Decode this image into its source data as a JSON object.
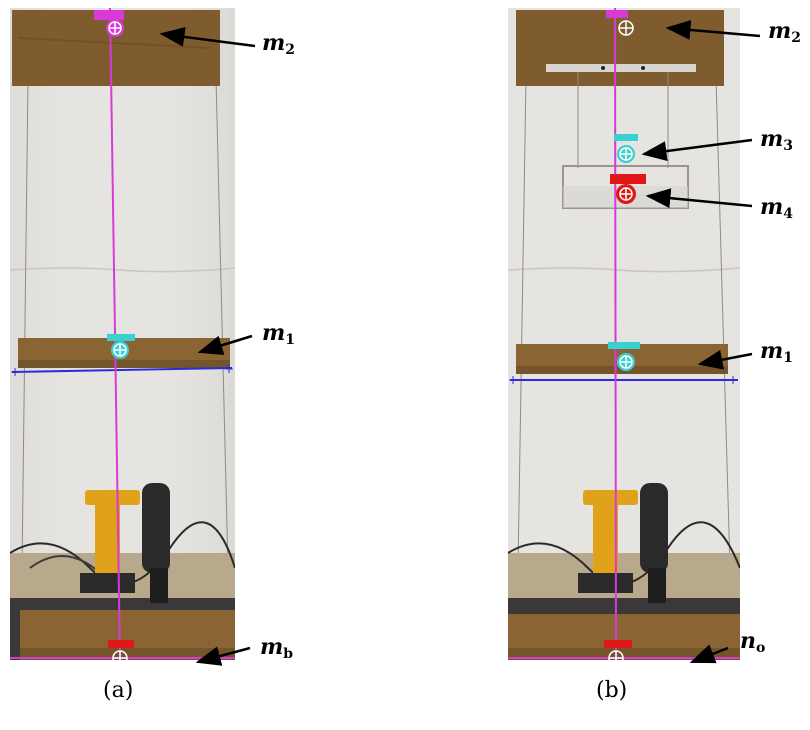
{
  "panel_a": {
    "caption": "(a)",
    "labels": {
      "m2": {
        "base": "m",
        "sub": "2"
      },
      "m1": {
        "base": "m",
        "sub": "1"
      },
      "mb": {
        "base": "m",
        "sub": "b"
      }
    }
  },
  "panel_b": {
    "caption": "(b)",
    "labels": {
      "m2": {
        "base": "m",
        "sub": "2"
      },
      "m3": {
        "base": "m",
        "sub": "3"
      },
      "m4": {
        "base": "m",
        "sub": "4"
      },
      "m1": {
        "base": "m",
        "sub": "1"
      },
      "no": {
        "base": "n",
        "sub": "o"
      }
    }
  },
  "colors": {
    "wall": "#e6e4e0",
    "wood": "#8a6433",
    "wood_dark": "#5e4321",
    "magenta_line": "#d83ad8",
    "blue_line": "#2b2bd8",
    "cyan_marker": "#3ad0d0",
    "red_marker": "#e01818",
    "tool_yellow": "#e0a21a"
  }
}
